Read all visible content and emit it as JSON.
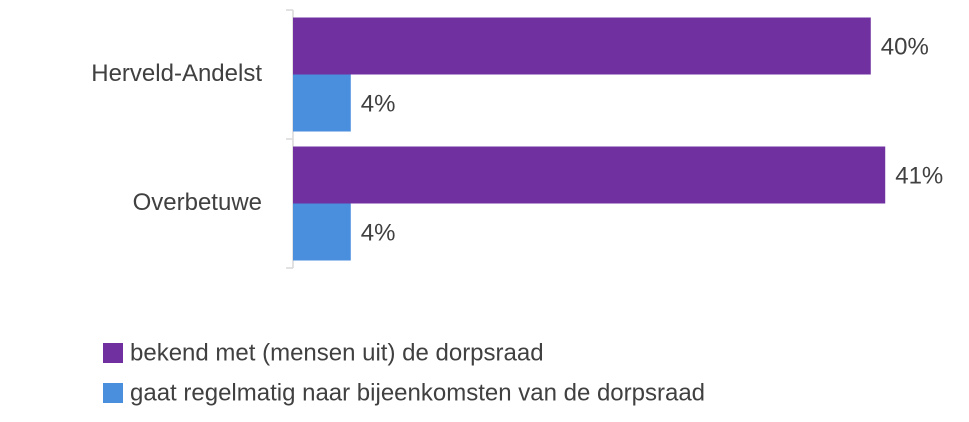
{
  "chart_data": {
    "type": "hbar",
    "categories": [
      "Herveld-Andelst",
      "Overbetuwe"
    ],
    "series": [
      {
        "name": "bekend met (mensen uit) de dorpsraad",
        "color": "#7030a0",
        "values": [
          40,
          41
        ],
        "value_labels": [
          "40%",
          "41%"
        ]
      },
      {
        "name": "gaat regelmatig naar bijeenkomsten van de dorpsraad",
        "color": "#4a8ede",
        "values": [
          4,
          4
        ],
        "value_labels": [
          "4%",
          "4%"
        ]
      }
    ],
    "xlim": [
      0,
      45
    ],
    "legend": "bottom"
  }
}
